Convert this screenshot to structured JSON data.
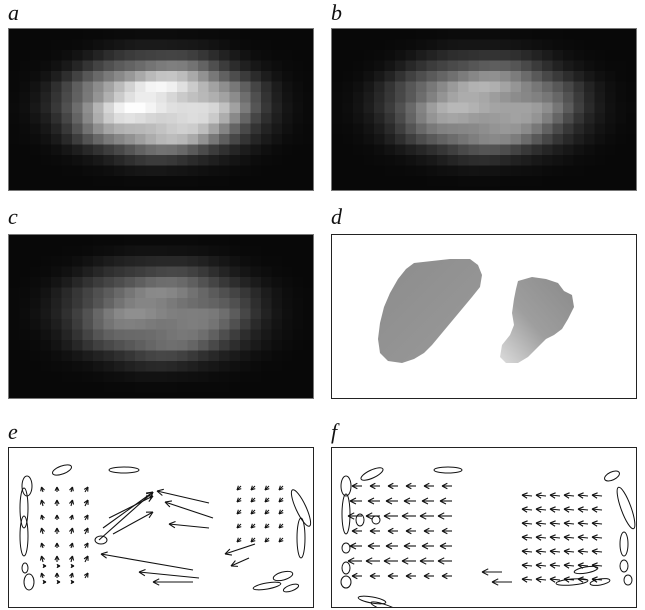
{
  "figure": {
    "panels": [
      {
        "id": "a",
        "label": "a",
        "kind": "intensity-image",
        "brightness": 1.0
      },
      {
        "id": "b",
        "label": "b",
        "kind": "intensity-image",
        "brightness": 0.72
      },
      {
        "id": "c",
        "label": "c",
        "kind": "intensity-image",
        "brightness": 0.55
      },
      {
        "id": "d",
        "label": "d",
        "kind": "segmentation-map"
      },
      {
        "id": "e",
        "label": "e",
        "kind": "vector-field-with-ellipses"
      },
      {
        "id": "f",
        "label": "f",
        "kind": "vector-field-with-ellipses"
      }
    ]
  },
  "colors": {
    "image_background": "#050505",
    "frame_border": "#222222",
    "region_gray": "#8a8a8a",
    "region_light": "#d8d8d8",
    "arrow": "#111111"
  }
}
